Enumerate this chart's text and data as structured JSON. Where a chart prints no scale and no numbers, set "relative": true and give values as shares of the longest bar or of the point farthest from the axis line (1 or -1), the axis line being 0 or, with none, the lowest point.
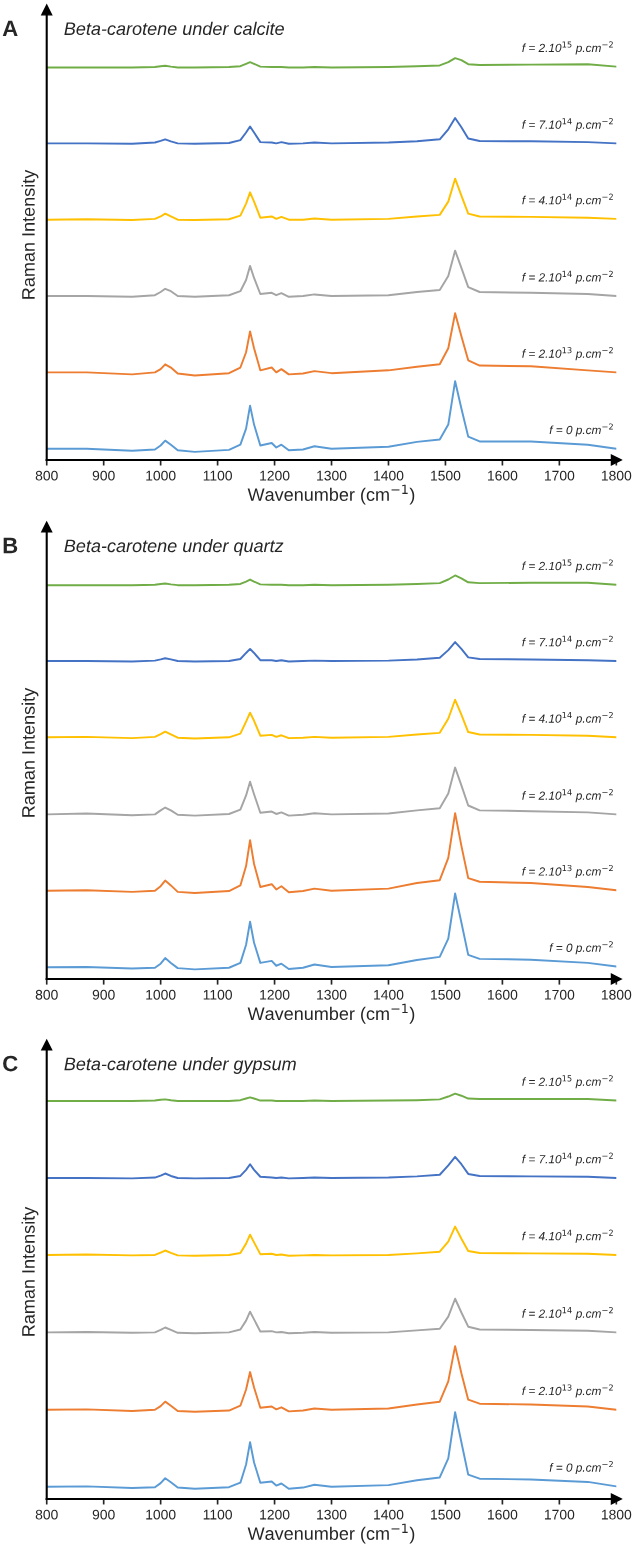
{
  "chart_data": [
    {
      "type": "line",
      "title": "Beta-carotene under calcite",
      "annotations": [
        "A"
      ],
      "xlabel": "Wavenumber (cm$^{−1}$)",
      "ylabel": "Raman Intensity",
      "relative": true,
      "grid": false,
      "legend": false,
      "xlim": [
        800,
        1800
      ],
      "xticks": [
        800,
        900,
        1000,
        1100,
        1200,
        1300,
        1400,
        1500,
        1600,
        1700,
        1800
      ],
      "x": [
        800,
        870,
        950,
        990,
        1000,
        1008,
        1018,
        1030,
        1060,
        1120,
        1140,
        1150,
        1157,
        1164,
        1175,
        1195,
        1203,
        1212,
        1225,
        1250,
        1270,
        1300,
        1400,
        1450,
        1490,
        1505,
        1517,
        1528,
        1540,
        1560,
        1650,
        1750,
        1800
      ],
      "series": [
        {
          "name": "f = 2.10$^{15}$ p.cm$^{−2}$",
          "color": "#70ad47",
          "values": [
            0.977,
            0.977,
            0.977,
            0.978,
            0.98,
            0.981,
            0.979,
            0.977,
            0.977,
            0.978,
            0.98,
            0.986,
            0.99,
            0.986,
            0.979,
            0.978,
            0.978,
            0.978,
            0.977,
            0.977,
            0.978,
            0.977,
            0.978,
            0.98,
            0.982,
            0.99,
            1.0,
            0.995,
            0.985,
            0.983,
            0.984,
            0.985,
            0.979
          ]
        },
        {
          "name": "f = 7.10$^{14}$ p.cm$^{−2}$",
          "color": "#4472c4",
          "values": [
            0.788,
            0.788,
            0.787,
            0.79,
            0.794,
            0.798,
            0.793,
            0.788,
            0.787,
            0.789,
            0.796,
            0.815,
            0.83,
            0.815,
            0.791,
            0.79,
            0.788,
            0.791,
            0.787,
            0.788,
            0.79,
            0.788,
            0.79,
            0.793,
            0.798,
            0.823,
            0.851,
            0.828,
            0.8,
            0.794,
            0.793,
            0.791,
            0.788
          ]
        },
        {
          "name": "f = 4.10$^{14}$ p.cm$^{−2}$",
          "color": "#ffc000",
          "values": [
            0.598,
            0.599,
            0.597,
            0.6,
            0.606,
            0.613,
            0.606,
            0.598,
            0.597,
            0.599,
            0.608,
            0.638,
            0.666,
            0.643,
            0.603,
            0.606,
            0.6,
            0.605,
            0.598,
            0.598,
            0.601,
            0.598,
            0.6,
            0.606,
            0.61,
            0.643,
            0.7,
            0.658,
            0.613,
            0.606,
            0.605,
            0.603,
            0.6
          ]
        },
        {
          "name": "f = 2.10$^{14}$ p.cm$^{−2}$",
          "color": "#a5a5a5",
          "values": [
            0.408,
            0.408,
            0.406,
            0.41,
            0.418,
            0.426,
            0.42,
            0.408,
            0.406,
            0.41,
            0.42,
            0.448,
            0.483,
            0.453,
            0.413,
            0.416,
            0.41,
            0.415,
            0.406,
            0.408,
            0.412,
            0.408,
            0.41,
            0.418,
            0.423,
            0.458,
            0.521,
            0.478,
            0.43,
            0.418,
            0.416,
            0.413,
            0.408
          ]
        },
        {
          "name": "f = 2.10$^{13}$ p.cm$^{−2}$",
          "color": "#ed7d31",
          "values": [
            0.218,
            0.218,
            0.213,
            0.218,
            0.226,
            0.238,
            0.23,
            0.215,
            0.21,
            0.216,
            0.23,
            0.268,
            0.32,
            0.278,
            0.223,
            0.23,
            0.218,
            0.226,
            0.213,
            0.215,
            0.221,
            0.216,
            0.223,
            0.232,
            0.238,
            0.278,
            0.365,
            0.308,
            0.248,
            0.235,
            0.233,
            0.223,
            0.218
          ]
        },
        {
          "name": "f = 0 p.cm$^{−2}$",
          "color": "#5b9bd5",
          "values": [
            0.028,
            0.028,
            0.023,
            0.026,
            0.036,
            0.048,
            0.038,
            0.024,
            0.02,
            0.025,
            0.038,
            0.078,
            0.135,
            0.088,
            0.036,
            0.042,
            0.031,
            0.038,
            0.024,
            0.026,
            0.034,
            0.028,
            0.033,
            0.045,
            0.051,
            0.088,
            0.196,
            0.128,
            0.058,
            0.046,
            0.046,
            0.038,
            0.028
          ]
        }
      ]
    },
    {
      "type": "line",
      "title": "Beta-carotene under quartz",
      "annotations": [
        "B"
      ],
      "xlabel": "Wavenumber (cm$^{−1}$)",
      "ylabel": "Raman Intensity",
      "relative": true,
      "grid": false,
      "legend": false,
      "xlim": [
        800,
        1800
      ],
      "xticks": [
        800,
        900,
        1000,
        1100,
        1200,
        1300,
        1400,
        1500,
        1600,
        1700,
        1800
      ],
      "x": [
        800,
        870,
        950,
        990,
        1000,
        1008,
        1018,
        1030,
        1060,
        1120,
        1140,
        1150,
        1157,
        1164,
        1175,
        1195,
        1203,
        1212,
        1225,
        1250,
        1270,
        1300,
        1400,
        1450,
        1490,
        1505,
        1517,
        1528,
        1540,
        1560,
        1650,
        1750,
        1800
      ],
      "series": [
        {
          "name": "f = 2.10$^{15}$ p.cm$^{−2}$",
          "color": "#70ad47",
          "values": [
            0.976,
            0.976,
            0.976,
            0.977,
            0.979,
            0.98,
            0.978,
            0.976,
            0.976,
            0.977,
            0.979,
            0.985,
            0.99,
            0.985,
            0.978,
            0.977,
            0.977,
            0.977,
            0.976,
            0.976,
            0.977,
            0.976,
            0.977,
            0.979,
            0.981,
            0.99,
            1.0,
            0.993,
            0.983,
            0.981,
            0.982,
            0.982,
            0.977
          ]
        },
        {
          "name": "f = 7.10$^{14}$ p.cm$^{−2}$",
          "color": "#4472c4",
          "values": [
            0.788,
            0.788,
            0.787,
            0.789,
            0.792,
            0.795,
            0.792,
            0.788,
            0.787,
            0.788,
            0.793,
            0.808,
            0.818,
            0.808,
            0.79,
            0.79,
            0.788,
            0.79,
            0.787,
            0.788,
            0.789,
            0.788,
            0.789,
            0.792,
            0.796,
            0.815,
            0.835,
            0.818,
            0.797,
            0.793,
            0.792,
            0.79,
            0.788
          ]
        },
        {
          "name": "f = 4.10$^{14}$ p.cm$^{−2}$",
          "color": "#ffc000",
          "values": [
            0.599,
            0.6,
            0.597,
            0.6,
            0.607,
            0.613,
            0.606,
            0.598,
            0.596,
            0.599,
            0.608,
            0.638,
            0.66,
            0.64,
            0.603,
            0.605,
            0.6,
            0.604,
            0.597,
            0.598,
            0.6,
            0.598,
            0.6,
            0.606,
            0.61,
            0.645,
            0.692,
            0.655,
            0.612,
            0.606,
            0.605,
            0.603,
            0.599
          ]
        },
        {
          "name": "f = 2.10$^{14}$ p.cm$^{−2}$",
          "color": "#a5a5a5",
          "values": [
            0.408,
            0.41,
            0.406,
            0.408,
            0.418,
            0.425,
            0.418,
            0.407,
            0.405,
            0.409,
            0.42,
            0.455,
            0.489,
            0.458,
            0.412,
            0.415,
            0.409,
            0.413,
            0.405,
            0.407,
            0.411,
            0.408,
            0.41,
            0.418,
            0.423,
            0.46,
            0.524,
            0.48,
            0.43,
            0.418,
            0.416,
            0.413,
            0.408
          ]
        },
        {
          "name": "f = 2.10$^{13}$ p.cm$^{−2}$",
          "color": "#ed7d31",
          "values": [
            0.219,
            0.22,
            0.216,
            0.219,
            0.23,
            0.244,
            0.232,
            0.216,
            0.213,
            0.218,
            0.232,
            0.28,
            0.344,
            0.285,
            0.228,
            0.235,
            0.222,
            0.23,
            0.215,
            0.218,
            0.224,
            0.219,
            0.224,
            0.238,
            0.245,
            0.3,
            0.411,
            0.33,
            0.25,
            0.241,
            0.238,
            0.228,
            0.22
          ]
        },
        {
          "name": "f = 0 p.cm$^{−2}$",
          "color": "#5b9bd5",
          "values": [
            0.029,
            0.03,
            0.026,
            0.028,
            0.038,
            0.052,
            0.04,
            0.027,
            0.024,
            0.028,
            0.04,
            0.085,
            0.142,
            0.09,
            0.04,
            0.045,
            0.033,
            0.038,
            0.025,
            0.028,
            0.036,
            0.03,
            0.034,
            0.047,
            0.055,
            0.1,
            0.212,
            0.14,
            0.06,
            0.05,
            0.048,
            0.04,
            0.031
          ]
        }
      ]
    },
    {
      "type": "line",
      "title": "Beta-carotene under gypsum",
      "annotations": [
        "C"
      ],
      "xlabel": "Wavenumber (cm$^{−1}$)",
      "ylabel": "Raman Intensity",
      "relative": true,
      "grid": false,
      "legend": false,
      "xlim": [
        800,
        1800
      ],
      "xticks": [
        800,
        900,
        1000,
        1100,
        1200,
        1300,
        1400,
        1500,
        1600,
        1700,
        1800
      ],
      "x": [
        800,
        870,
        950,
        990,
        1000,
        1008,
        1018,
        1030,
        1060,
        1120,
        1140,
        1150,
        1157,
        1164,
        1175,
        1195,
        1203,
        1212,
        1225,
        1250,
        1270,
        1300,
        1400,
        1450,
        1490,
        1505,
        1517,
        1528,
        1540,
        1560,
        1650,
        1750,
        1800
      ],
      "series": [
        {
          "name": "f = 2.10$^{15}$ p.cm$^{−2}$",
          "color": "#70ad47",
          "values": [
            0.982,
            0.982,
            0.982,
            0.983,
            0.985,
            0.986,
            0.984,
            0.982,
            0.982,
            0.982,
            0.984,
            0.988,
            0.991,
            0.988,
            0.983,
            0.983,
            0.982,
            0.982,
            0.982,
            0.982,
            0.983,
            0.982,
            0.983,
            0.984,
            0.986,
            0.993,
            1.0,
            0.995,
            0.988,
            0.987,
            0.987,
            0.987,
            0.983
          ]
        },
        {
          "name": "f = 7.10$^{14}$ p.cm$^{−2}$",
          "color": "#4472c4",
          "values": [
            0.792,
            0.792,
            0.791,
            0.793,
            0.798,
            0.803,
            0.797,
            0.792,
            0.791,
            0.792,
            0.797,
            0.812,
            0.826,
            0.812,
            0.795,
            0.793,
            0.792,
            0.793,
            0.791,
            0.792,
            0.793,
            0.792,
            0.793,
            0.796,
            0.8,
            0.823,
            0.844,
            0.826,
            0.802,
            0.797,
            0.796,
            0.795,
            0.792
          ]
        },
        {
          "name": "f = 4.10$^{14}$ p.cm$^{−2}$",
          "color": "#ffc000",
          "values": [
            0.602,
            0.603,
            0.601,
            0.602,
            0.608,
            0.613,
            0.607,
            0.601,
            0.6,
            0.602,
            0.607,
            0.63,
            0.652,
            0.633,
            0.604,
            0.605,
            0.602,
            0.603,
            0.6,
            0.601,
            0.602,
            0.601,
            0.602,
            0.606,
            0.61,
            0.635,
            0.672,
            0.642,
            0.612,
            0.607,
            0.606,
            0.605,
            0.602
          ]
        },
        {
          "name": "f = 2.10$^{14}$ p.cm$^{−2}$",
          "color": "#a5a5a5",
          "values": [
            0.411,
            0.412,
            0.41,
            0.411,
            0.417,
            0.423,
            0.417,
            0.41,
            0.409,
            0.411,
            0.418,
            0.44,
            0.462,
            0.443,
            0.413,
            0.414,
            0.411,
            0.412,
            0.409,
            0.41,
            0.412,
            0.41,
            0.411,
            0.416,
            0.42,
            0.45,
            0.494,
            0.46,
            0.425,
            0.418,
            0.417,
            0.415,
            0.411
          ]
        },
        {
          "name": "f = 2.10$^{13}$ p.cm$^{−2}$",
          "color": "#ed7d31",
          "values": [
            0.22,
            0.221,
            0.217,
            0.22,
            0.229,
            0.24,
            0.23,
            0.217,
            0.215,
            0.218,
            0.23,
            0.27,
            0.313,
            0.275,
            0.225,
            0.228,
            0.221,
            0.226,
            0.216,
            0.218,
            0.223,
            0.22,
            0.223,
            0.233,
            0.24,
            0.29,
            0.377,
            0.31,
            0.245,
            0.235,
            0.233,
            0.228,
            0.22
          ]
        },
        {
          "name": "f = 0 p.cm$^{−2}$",
          "color": "#5b9bd5",
          "values": [
            0.03,
            0.031,
            0.027,
            0.029,
            0.039,
            0.051,
            0.041,
            0.028,
            0.025,
            0.029,
            0.04,
            0.085,
            0.14,
            0.09,
            0.04,
            0.043,
            0.033,
            0.038,
            0.025,
            0.028,
            0.035,
            0.03,
            0.034,
            0.046,
            0.053,
            0.1,
            0.214,
            0.14,
            0.06,
            0.05,
            0.048,
            0.042,
            0.031
          ]
        }
      ]
    }
  ]
}
